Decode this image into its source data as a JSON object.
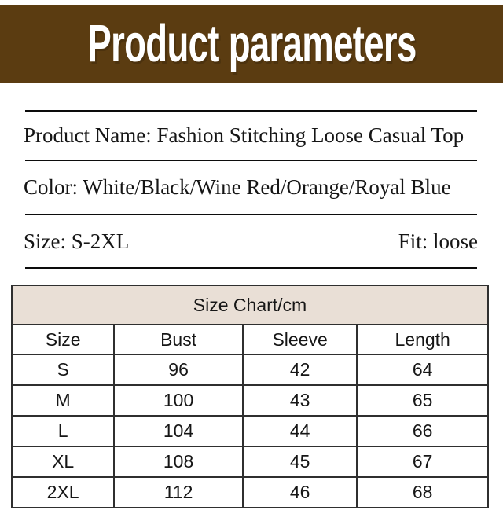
{
  "banner": {
    "title": "Product parameters",
    "bg_color": "#5b3c11",
    "text_color": "#ffffff"
  },
  "info": {
    "product_name_line": "Product Name: Fashion Stitching Loose Casual Top",
    "color_line": "Color: White/Black/Wine Red/Orange/Royal Blue",
    "size_line": "Size: S-2XL",
    "fit_line": "Fit: loose"
  },
  "size_chart": {
    "title": "Size Chart/cm",
    "header_bg": "#e9dfd6",
    "columns": [
      "Size",
      "Bust",
      "Sleeve",
      "Length"
    ],
    "rows": [
      [
        "S",
        "96",
        "42",
        "64"
      ],
      [
        "M",
        "100",
        "43",
        "65"
      ],
      [
        "L",
        "104",
        "44",
        "66"
      ],
      [
        "XL",
        "108",
        "45",
        "67"
      ],
      [
        "2XL",
        "112",
        "46",
        "68"
      ]
    ]
  }
}
